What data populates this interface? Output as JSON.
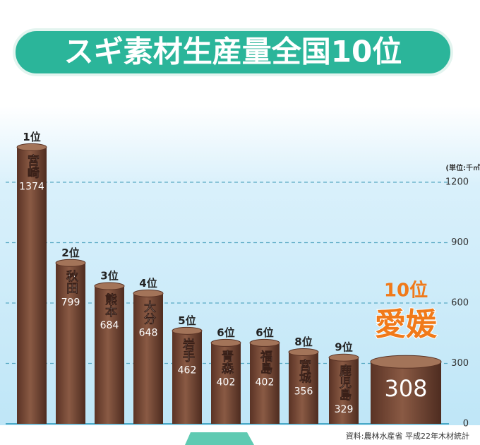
{
  "chart_data": {
    "type": "bar",
    "title": "スギ素材生産量全国10位",
    "unit": "(単位:千㎥)",
    "source": "資料:農林水産省 平成22年木材統計",
    "categories": [
      "宮崎",
      "秋田",
      "熊本",
      "大分",
      "岩手",
      "青森",
      "福島",
      "宮城",
      "鹿児島",
      "愛媛"
    ],
    "ranks": [
      "1位",
      "2位",
      "3位",
      "4位",
      "5位",
      "6位",
      "6位",
      "8位",
      "9位",
      "10位"
    ],
    "values": [
      1374,
      799,
      684,
      648,
      462,
      402,
      402,
      356,
      329,
      308
    ],
    "color": "#7a4a35",
    "highlight_index": 9,
    "highlight_color": "#f07a1a",
    "ylim": [
      0,
      1400
    ],
    "yticks": [
      0,
      300,
      600,
      900,
      1200
    ],
    "grid": true
  }
}
